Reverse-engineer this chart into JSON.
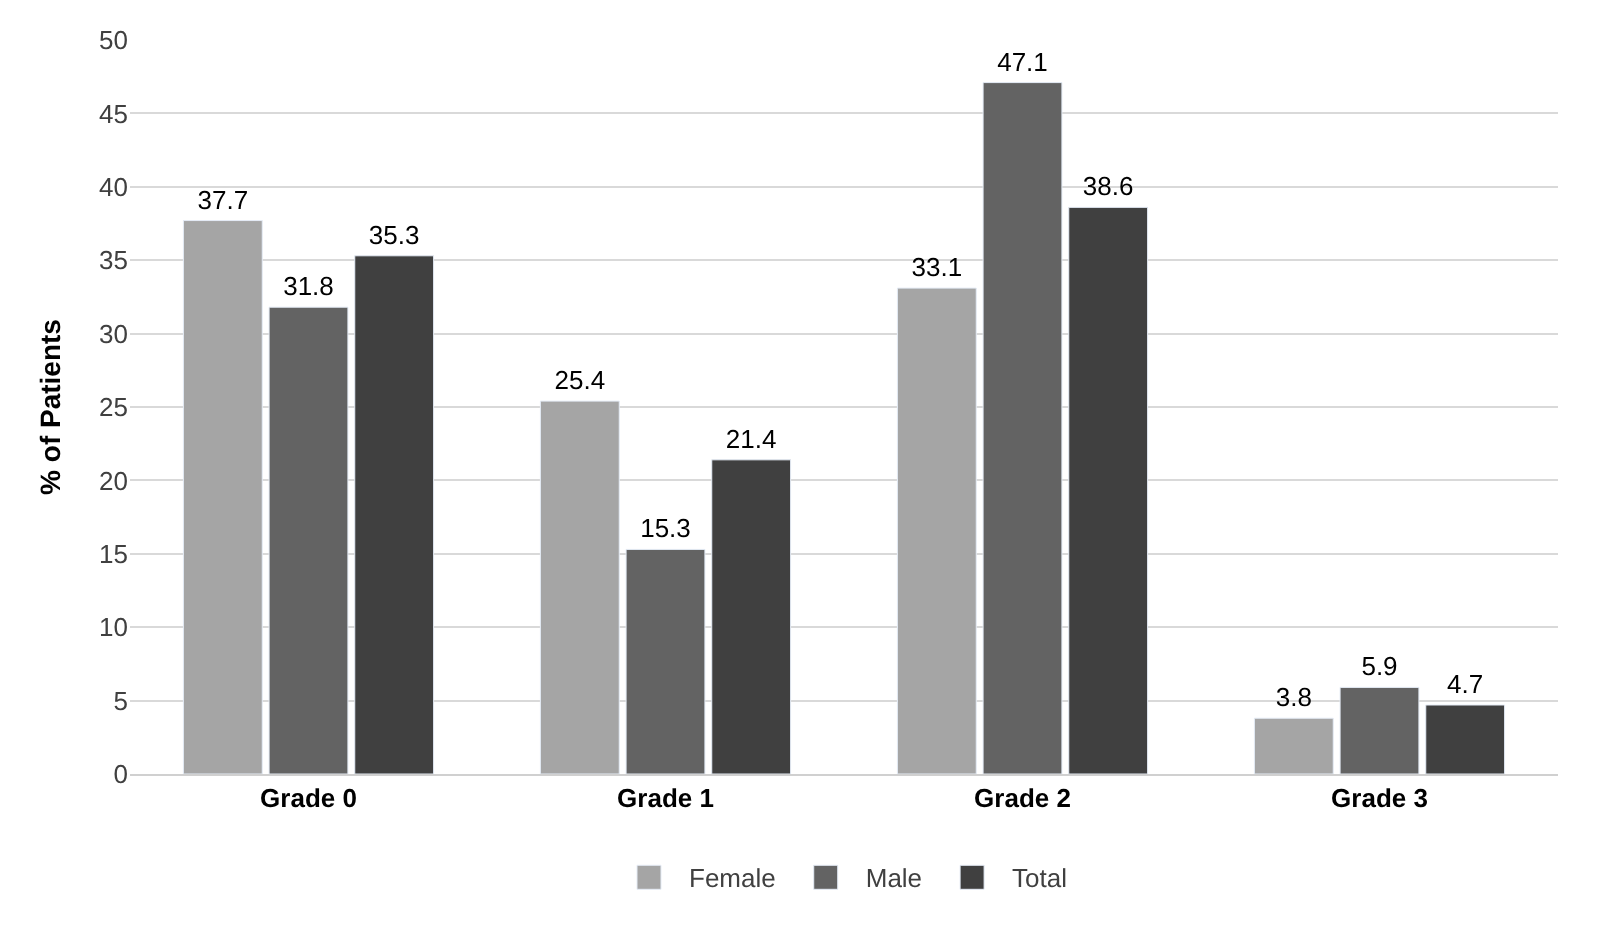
{
  "chart_data": {
    "type": "bar",
    "ylabel": "% of Patients",
    "categories": [
      "Grade 0",
      "Grade 1",
      "Grade 2",
      "Grade 3"
    ],
    "series": [
      {
        "name": "Female",
        "color": "#a5a5a5",
        "values": [
          37.7,
          25.4,
          33.1,
          3.8
        ]
      },
      {
        "name": "Male",
        "color": "#636363",
        "values": [
          31.8,
          15.3,
          47.1,
          5.9
        ]
      },
      {
        "name": "Total",
        "color": "#404040",
        "values": [
          35.3,
          21.4,
          38.6,
          4.7
        ]
      }
    ],
    "ylim": [
      0,
      50
    ],
    "yticks": [
      0,
      5,
      10,
      15,
      20,
      25,
      30,
      35,
      40,
      45,
      50
    ],
    "grid": "y",
    "legend": "bottom",
    "data_labels": true
  }
}
